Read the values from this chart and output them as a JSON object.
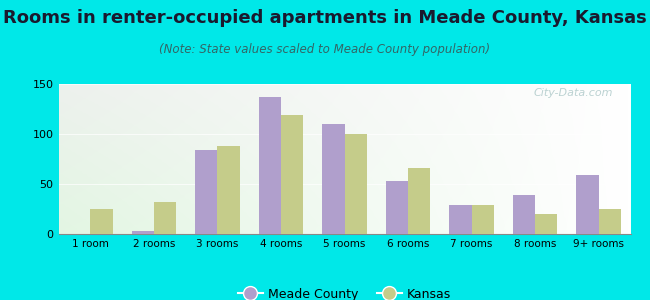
{
  "title": "Rooms in renter-occupied apartments in Meade County, Kansas",
  "subtitle": "(Note: State values scaled to Meade County population)",
  "categories": [
    "1 room",
    "2 rooms",
    "3 rooms",
    "4 rooms",
    "5 rooms",
    "6 rooms",
    "7 rooms",
    "8 rooms",
    "9+ rooms"
  ],
  "meade_county": [
    0,
    3,
    84,
    137,
    110,
    53,
    29,
    39,
    59
  ],
  "kansas": [
    25,
    32,
    88,
    119,
    100,
    66,
    29,
    20,
    25
  ],
  "meade_color": "#b09fcc",
  "kansas_color": "#c5cc8a",
  "bg_outer": "#00e8e8",
  "bg_chart_topleft": "#e8f5e8",
  "bg_chart_bottomleft": "#c8eecc",
  "bg_chart_right": "#f8faf8",
  "title_fontsize": 13,
  "subtitle_fontsize": 8.5,
  "ylim": [
    0,
    150
  ],
  "yticks": [
    0,
    50,
    100,
    150
  ],
  "bar_width": 0.35,
  "watermark": "City-Data.com"
}
